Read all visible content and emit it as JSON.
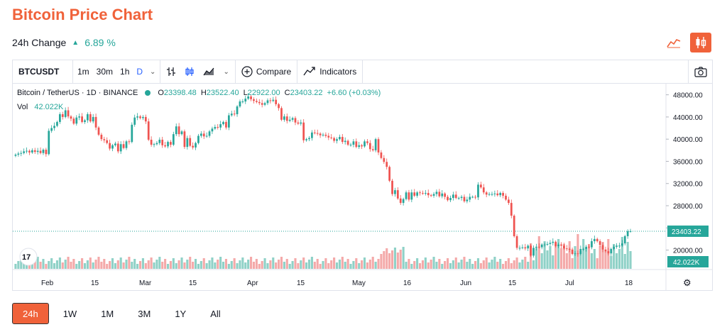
{
  "header": {
    "title": "Bitcoin Price Chart",
    "change_label": "24h Change",
    "change_value": "6.89 %"
  },
  "toolbar": {
    "symbol": "BTCUSDT",
    "intervals": [
      "1m",
      "30m",
      "1h",
      "D"
    ],
    "compare_label": "Compare",
    "indicators_label": "Indicators"
  },
  "legend": {
    "pair": "Bitcoin / TetherUS · 1D · BINANCE",
    "o_label": "O",
    "o": "23398.48",
    "h_label": "H",
    "h": "23522.40",
    "l_label": "L",
    "l": "22922.00",
    "c_label": "C",
    "c": "23403.22",
    "chg": "+6.60 (+0.03%)",
    "vol_label": "Vol",
    "vol_value": "42.022K"
  },
  "range_tabs": [
    "24h",
    "1W",
    "1M",
    "3M",
    "1Y",
    "All"
  ],
  "colors": {
    "accent": "#f0623a",
    "up": "#26a69a",
    "down": "#ef5350",
    "up_vol": "#8fd1c7",
    "down_vol": "#f4a9a9"
  },
  "chart_data": {
    "type": "candlestick",
    "y_ticks": [
      "48000.00",
      "44000.00",
      "40000.00",
      "36000.00",
      "32000.00",
      "28000.00",
      "24000.00",
      "20000.00"
    ],
    "y_range": [
      17000,
      50000
    ],
    "x_ticks": [
      "Feb",
      "15",
      "Mar",
      "15",
      "Apr",
      "15",
      "May",
      "16",
      "Jun",
      "15",
      "Jul",
      "18"
    ],
    "last_price": "23403.22",
    "last_volume": "42.022K",
    "closes": [
      37200,
      37400,
      37500,
      37800,
      37900,
      37600,
      38000,
      37700,
      37900,
      37500,
      38100,
      37300,
      41500,
      42000,
      42400,
      43100,
      44500,
      44000,
      45200,
      44100,
      43700,
      42800,
      43900,
      44100,
      43100,
      43400,
      44500,
      43200,
      44000,
      42100,
      40800,
      40000,
      39800,
      39300,
      38300,
      38900,
      39200,
      37800,
      39100,
      38400,
      39600,
      39500,
      42600,
      43900,
      44100,
      43800,
      44000,
      43200,
      39900,
      39000,
      39100,
      39300,
      39900,
      38900,
      38700,
      39500,
      39000,
      40900,
      42300,
      40900,
      41400,
      38600,
      40200,
      38800,
      38500,
      39300,
      40600,
      41000,
      40500,
      40600,
      41400,
      41900,
      42200,
      42100,
      42700,
      43100,
      42100,
      44300,
      44600,
      44500,
      45900,
      46800,
      46800,
      47300,
      47700,
      47200,
      46900,
      46700,
      46500,
      46200,
      46500,
      47000,
      46900,
      47100,
      46300,
      45600,
      43500,
      44100,
      43300,
      43500,
      43800,
      43000,
      42800,
      43000,
      39800,
      40000,
      40200,
      41200,
      41100,
      41000,
      40700,
      40800,
      40600,
      40300,
      40200,
      39700,
      40000,
      40400,
      39500,
      39700,
      39000,
      39000,
      39600,
      38600,
      38900,
      38700,
      39600,
      39300,
      38200,
      38000,
      40000,
      37600,
      36600,
      35900,
      35000,
      32500,
      30100,
      30800,
      29300,
      28500,
      29200,
      30400,
      29100,
      30400,
      29800,
      30400,
      30300,
      30200,
      30300,
      29900,
      29800,
      30100,
      30500,
      29700,
      30200,
      29600,
      29000,
      29400,
      30000,
      29400,
      29400,
      29600,
      28800,
      29100,
      29600,
      29600,
      29500,
      31800,
      31300,
      30400,
      30000,
      30100,
      30100,
      30200,
      29900,
      30300,
      29800,
      29100,
      28500,
      26200,
      22500,
      20400,
      20400,
      20500,
      20300,
      20800,
      19000,
      20400,
      20600,
      20500,
      21000,
      21000,
      21100,
      21300,
      21500,
      20700,
      21000,
      20800,
      20300,
      20200,
      20100,
      19300,
      19400,
      19300,
      20200,
      20200,
      20600,
      20500,
      21600,
      22000,
      21600,
      20900,
      20100,
      19800,
      19400,
      20200,
      20600,
      20800,
      20800,
      21200,
      22500,
      23400,
      23403
    ]
  }
}
